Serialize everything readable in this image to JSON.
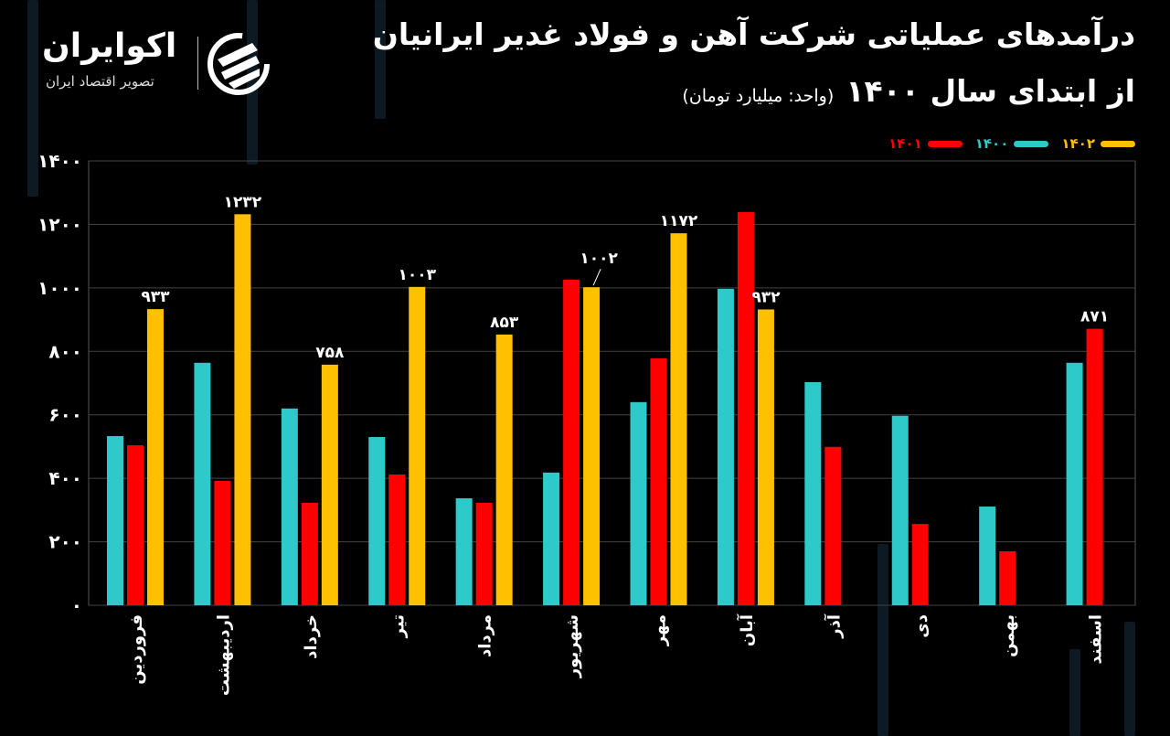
{
  "header": {
    "title_line1": "درآمدهای عملیاتی شرکت آهن و فولاد غدیر ایرانیان",
    "title_line2": "از ابتدای سال ۱۴۰۰",
    "unit": "(واحد: میلیارد تومان)"
  },
  "logo": {
    "name": "اکوایران",
    "tagline": "تصویر اقتصاد ایران"
  },
  "chart_data": {
    "type": "bar",
    "title": "درآمدهای عملیاتی شرکت آهن و فولاد غدیر ایرانیان از ابتدای سال ۱۴۰۰",
    "ylabel": "",
    "unit": "میلیارد تومان",
    "ylim": [
      0,
      1400
    ],
    "yticks": [
      0,
      200,
      400,
      600,
      800,
      1000,
      1200,
      1400
    ],
    "grid": true,
    "legend_position": "top-right",
    "categories": [
      "فروردین",
      "اردیبهشت",
      "خرداد",
      "تیر",
      "مرداد",
      "شهریور",
      "مهر",
      "آبان",
      "آذر",
      "دی",
      "بهمن",
      "اسفند"
    ],
    "series": [
      {
        "name": "۱۴۰۰",
        "color": "#2ec9c9",
        "values": [
          533,
          764,
          620,
          530,
          337,
          418,
          640,
          997,
          703,
          597,
          311,
          764
        ]
      },
      {
        "name": "۱۴۰۱",
        "color": "#ff0000",
        "values": [
          504,
          392,
          323,
          412,
          323,
          1026,
          778,
          1239,
          499,
          256,
          170,
          871
        ]
      },
      {
        "name": "۱۴۰۲",
        "color": "#ffc000",
        "values": [
          933,
          1232,
          758,
          1003,
          853,
          1002,
          1172,
          932,
          null,
          null,
          null,
          null
        ]
      }
    ],
    "data_labels": [
      {
        "series": "۱۴۰۲",
        "category": "فروردین",
        "text": "۹۳۳"
      },
      {
        "series": "۱۴۰۲",
        "category": "اردیبهشت",
        "text": "۱۲۳۲"
      },
      {
        "series": "۱۴۰۲",
        "category": "خرداد",
        "text": "۷۵۸"
      },
      {
        "series": "۱۴۰۲",
        "category": "تیر",
        "text": "۱۰۰۳"
      },
      {
        "series": "۱۴۰۲",
        "category": "مرداد",
        "text": "۸۵۳"
      },
      {
        "series": "۱۴۰۲",
        "category": "شهریور",
        "text": "۱۰۰۲"
      },
      {
        "series": "۱۴۰۲",
        "category": "مهر",
        "text": "۱۱۷۲"
      },
      {
        "series": "۱۴۰۲",
        "category": "آبان",
        "text": "۹۳۲"
      },
      {
        "series": "۱۴۰۱",
        "category": "اسفند",
        "text": "۸۷۱"
      }
    ]
  }
}
